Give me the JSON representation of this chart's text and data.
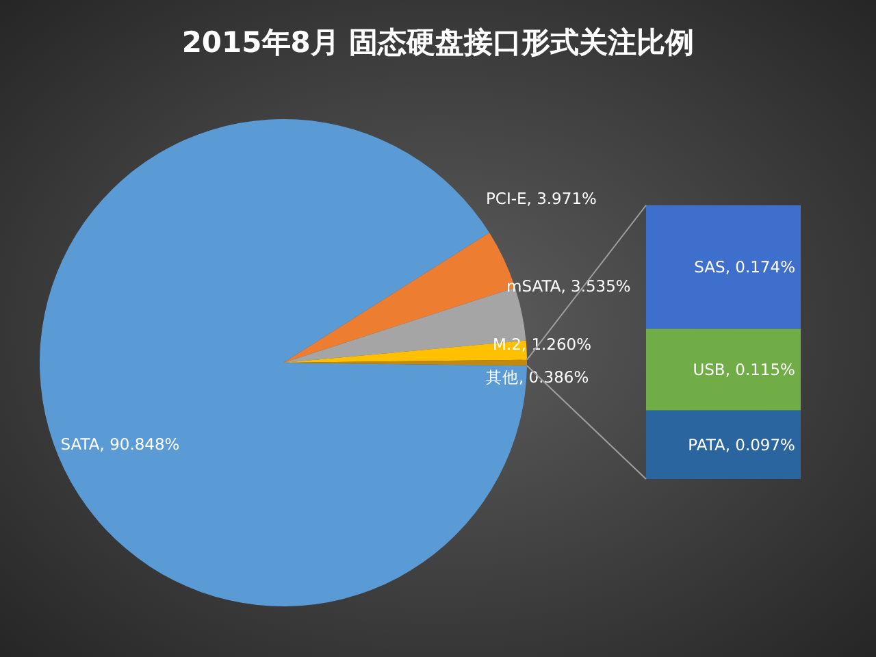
{
  "chart_data": [
    {
      "type": "pie",
      "title": "2015年8月  固态硬盘接口形式关注比例",
      "categories": [
        "SATA",
        "PCI-E",
        "mSATA",
        "M.2",
        "其他"
      ],
      "values": [
        90.848,
        3.971,
        3.535,
        1.26,
        0.386
      ],
      "value_labels": [
        "90.848%",
        "3.971%",
        "3.535%",
        "1.260%",
        "0.386%"
      ],
      "colors": [
        "#5b9bd5",
        "#ed7d31",
        "#a5a5a5",
        "#ffc000",
        "#c08a10"
      ]
    },
    {
      "type": "bar",
      "stacked": true,
      "categories": [
        null
      ],
      "series": [
        {
          "color": "#2a65a0",
          "values": [
            0.097
          ],
          "value_labels": [
            "PATA, 0.097%"
          ]
        },
        {
          "color": "#70ad47",
          "values": [
            0.115
          ],
          "value_labels": [
            "USB, 0.115%"
          ]
        },
        {
          "color": "#3f6fcc",
          "values": [
            0.174
          ],
          "value_labels": [
            "SAS, 0.174%"
          ]
        }
      ]
    }
  ]
}
